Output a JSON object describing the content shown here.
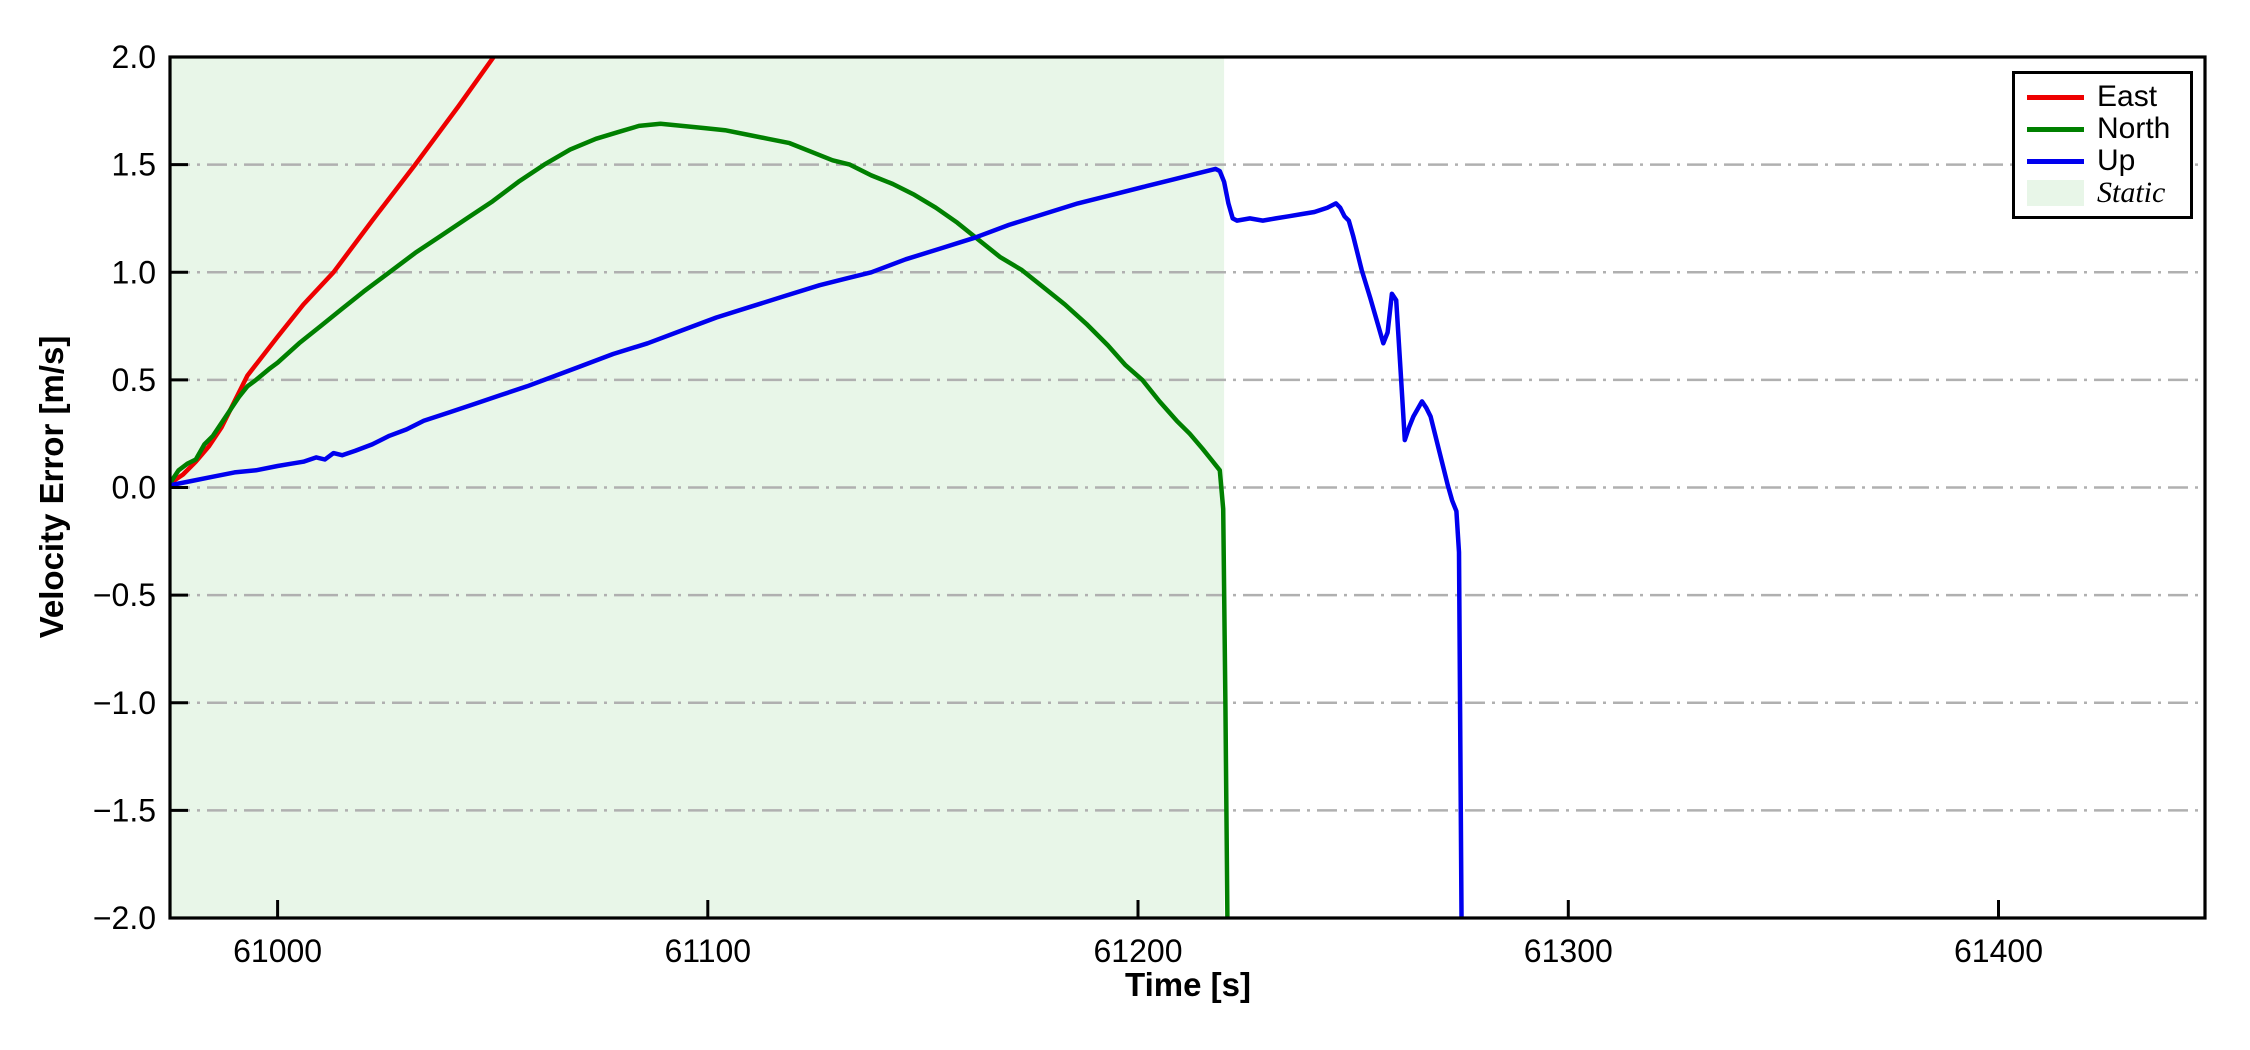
{
  "chart_data": {
    "type": "line",
    "title": "",
    "xlabel": "Time [s]",
    "ylabel": "Velocity Error [m/s]",
    "xlim": [
      60975,
      61448
    ],
    "ylim": [
      -2.0,
      2.0
    ],
    "grid": {
      "axis": "y",
      "style": "dash-dot",
      "color": "#b0b0b0"
    },
    "legend_position": "top-right",
    "xticks": [
      {
        "v": 61000,
        "label": "61000"
      },
      {
        "v": 61100,
        "label": "61100"
      },
      {
        "v": 61200,
        "label": "61200"
      },
      {
        "v": 61300,
        "label": "61300"
      },
      {
        "v": 61400,
        "label": "61400"
      }
    ],
    "yticks": [
      {
        "v": 2.0,
        "label": "2.0"
      },
      {
        "v": 1.5,
        "label": "1.5"
      },
      {
        "v": 1.0,
        "label": "1.0"
      },
      {
        "v": 0.5,
        "label": "0.5"
      },
      {
        "v": 0.0,
        "label": "0.0"
      },
      {
        "v": -0.5,
        "label": "−0.5"
      },
      {
        "v": -1.0,
        "label": "−1.0"
      },
      {
        "v": -1.5,
        "label": "−1.5"
      },
      {
        "v": -2.0,
        "label": "−2.0"
      }
    ],
    "static_region": {
      "label": "Static",
      "x_start": 60975,
      "x_end": 61220,
      "color": "#e8f6e8"
    },
    "series": [
      {
        "name": "East",
        "color": "#ee0000",
        "points": [
          [
            60975,
            0.02
          ],
          [
            60978,
            0.06
          ],
          [
            60981,
            0.12
          ],
          [
            60984,
            0.19
          ],
          [
            60987,
            0.28
          ],
          [
            60990,
            0.4
          ],
          [
            60993,
            0.52
          ],
          [
            61000,
            0.7
          ],
          [
            61006,
            0.85
          ],
          [
            61013,
            1.0
          ],
          [
            61022,
            1.24
          ],
          [
            61032,
            1.5
          ],
          [
            61042,
            1.77
          ],
          [
            61052,
            2.05
          ]
        ]
      },
      {
        "name": "North",
        "color": "#008000",
        "points": [
          [
            60975,
            0.02
          ],
          [
            60977,
            0.08
          ],
          [
            60979,
            0.11
          ],
          [
            60981,
            0.13
          ],
          [
            60983,
            0.2
          ],
          [
            60985,
            0.24
          ],
          [
            60987,
            0.3
          ],
          [
            60989,
            0.36
          ],
          [
            60991,
            0.42
          ],
          [
            60993,
            0.47
          ],
          [
            60995,
            0.5
          ],
          [
            60998,
            0.55
          ],
          [
            61000,
            0.58
          ],
          [
            61005,
            0.67
          ],
          [
            61010,
            0.75
          ],
          [
            61015,
            0.83
          ],
          [
            61020,
            0.91
          ],
          [
            61026,
            1.0
          ],
          [
            61032,
            1.09
          ],
          [
            61038,
            1.17
          ],
          [
            61044,
            1.25
          ],
          [
            61050,
            1.33
          ],
          [
            61056,
            1.42
          ],
          [
            61062,
            1.5
          ],
          [
            61068,
            1.57
          ],
          [
            61074,
            1.62
          ],
          [
            61079,
            1.65
          ],
          [
            61084,
            1.68
          ],
          [
            61089,
            1.69
          ],
          [
            61094,
            1.68
          ],
          [
            61099,
            1.67
          ],
          [
            61104,
            1.66
          ],
          [
            61109,
            1.64
          ],
          [
            61114,
            1.62
          ],
          [
            61119,
            1.6
          ],
          [
            61124,
            1.56
          ],
          [
            61129,
            1.52
          ],
          [
            61133,
            1.5
          ],
          [
            61138,
            1.45
          ],
          [
            61143,
            1.41
          ],
          [
            61148,
            1.36
          ],
          [
            61153,
            1.3
          ],
          [
            61158,
            1.23
          ],
          [
            61163,
            1.15
          ],
          [
            61168,
            1.07
          ],
          [
            61173,
            1.01
          ],
          [
            61178,
            0.93
          ],
          [
            61183,
            0.85
          ],
          [
            61188,
            0.76
          ],
          [
            61193,
            0.66
          ],
          [
            61197,
            0.57
          ],
          [
            61201,
            0.5
          ],
          [
            61205,
            0.4
          ],
          [
            61209,
            0.31
          ],
          [
            61212,
            0.25
          ],
          [
            61215,
            0.18
          ],
          [
            61217,
            0.13
          ],
          [
            61219,
            0.08
          ],
          [
            61219.8,
            -0.1
          ],
          [
            61220.3,
            -1.0
          ],
          [
            61220.8,
            -2.05
          ]
        ]
      },
      {
        "name": "Up",
        "color": "#0000ee",
        "points": [
          [
            60975,
            0.01
          ],
          [
            60980,
            0.03
          ],
          [
            60985,
            0.05
          ],
          [
            60990,
            0.07
          ],
          [
            60995,
            0.08
          ],
          [
            61000,
            0.1
          ],
          [
            61003,
            0.11
          ],
          [
            61006,
            0.12
          ],
          [
            61009,
            0.14
          ],
          [
            61011,
            0.13
          ],
          [
            61013,
            0.16
          ],
          [
            61015,
            0.15
          ],
          [
            61018,
            0.17
          ],
          [
            61022,
            0.2
          ],
          [
            61026,
            0.24
          ],
          [
            61030,
            0.27
          ],
          [
            61034,
            0.31
          ],
          [
            61040,
            0.35
          ],
          [
            61046,
            0.39
          ],
          [
            61052,
            0.43
          ],
          [
            61058,
            0.47
          ],
          [
            61062,
            0.5
          ],
          [
            61070,
            0.56
          ],
          [
            61078,
            0.62
          ],
          [
            61086,
            0.67
          ],
          [
            61094,
            0.73
          ],
          [
            61102,
            0.79
          ],
          [
            61110,
            0.84
          ],
          [
            61118,
            0.89
          ],
          [
            61126,
            0.94
          ],
          [
            61132,
            0.97
          ],
          [
            61138,
            1.0
          ],
          [
            61146,
            1.06
          ],
          [
            61154,
            1.11
          ],
          [
            61162,
            1.16
          ],
          [
            61170,
            1.22
          ],
          [
            61178,
            1.27
          ],
          [
            61186,
            1.32
          ],
          [
            61194,
            1.36
          ],
          [
            61202,
            1.4
          ],
          [
            61208,
            1.43
          ],
          [
            61214,
            1.46
          ],
          [
            61218,
            1.48
          ],
          [
            61219,
            1.47
          ],
          [
            61220,
            1.42
          ],
          [
            61221,
            1.32
          ],
          [
            61222,
            1.25
          ],
          [
            61223,
            1.24
          ],
          [
            61226,
            1.25
          ],
          [
            61229,
            1.24
          ],
          [
            61232,
            1.25
          ],
          [
            61235,
            1.26
          ],
          [
            61238,
            1.27
          ],
          [
            61241,
            1.28
          ],
          [
            61244,
            1.3
          ],
          [
            61246,
            1.32
          ],
          [
            61247,
            1.3
          ],
          [
            61248,
            1.26
          ],
          [
            61249,
            1.24
          ],
          [
            61250,
            1.17
          ],
          [
            61252,
            1.01
          ],
          [
            61254,
            0.88
          ],
          [
            61256,
            0.74
          ],
          [
            61257,
            0.67
          ],
          [
            61258,
            0.72
          ],
          [
            61259,
            0.9
          ],
          [
            61260,
            0.87
          ],
          [
            61261,
            0.55
          ],
          [
            61262,
            0.22
          ],
          [
            61263,
            0.28
          ],
          [
            61264,
            0.33
          ],
          [
            61266,
            0.4
          ],
          [
            61267,
            0.37
          ],
          [
            61268,
            0.33
          ],
          [
            61269,
            0.25
          ],
          [
            61270,
            0.17
          ],
          [
            61271,
            0.09
          ],
          [
            61272,
            0.01
          ],
          [
            61273,
            -0.06
          ],
          [
            61274,
            -0.11
          ],
          [
            61274.6,
            -0.3
          ],
          [
            61275.2,
            -2.05
          ]
        ]
      }
    ]
  }
}
